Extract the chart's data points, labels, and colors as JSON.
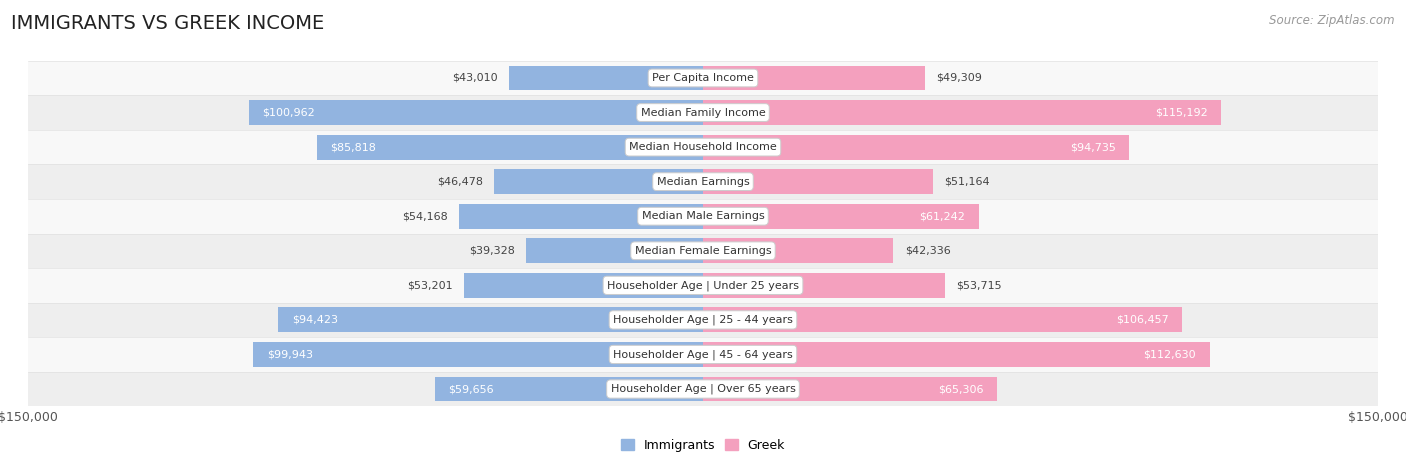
{
  "title": "IMMIGRANTS VS GREEK INCOME",
  "source": "Source: ZipAtlas.com",
  "categories": [
    "Per Capita Income",
    "Median Family Income",
    "Median Household Income",
    "Median Earnings",
    "Median Male Earnings",
    "Median Female Earnings",
    "Householder Age | Under 25 years",
    "Householder Age | 25 - 44 years",
    "Householder Age | 45 - 64 years",
    "Householder Age | Over 65 years"
  ],
  "immigrants": [
    43010,
    100962,
    85818,
    46478,
    54168,
    39328,
    53201,
    94423,
    99943,
    59656
  ],
  "greek": [
    49309,
    115192,
    94735,
    51164,
    61242,
    42336,
    53715,
    106457,
    112630,
    65306
  ],
  "immigrant_color": "#92B4E0",
  "greek_color": "#F4A0BE",
  "bar_height": 0.72,
  "xlim": 150000,
  "x_axis_label_left": "$150,000",
  "x_axis_label_right": "$150,000",
  "legend_immigrant": "Immigrants",
  "legend_greek": "Greek",
  "row_bg_odd": "#EEEEEE",
  "row_bg_even": "#F8F8F8",
  "title_fontsize": 14,
  "source_fontsize": 8.5,
  "label_fontsize": 8,
  "value_fontsize": 8,
  "inside_label_threshold_imm": 55000,
  "inside_label_threshold_grk": 55000
}
